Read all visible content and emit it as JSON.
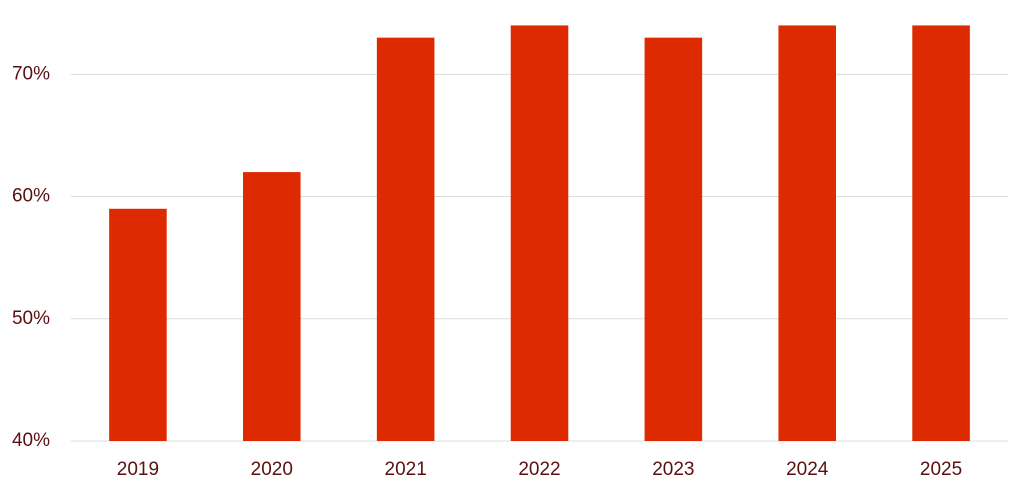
{
  "chart_data": {
    "type": "bar",
    "categories": [
      "2019",
      "2020",
      "2021",
      "2022",
      "2023",
      "2024",
      "2025"
    ],
    "values": [
      59,
      62,
      73,
      74,
      73,
      74,
      74
    ],
    "color": "#dd2a00",
    "ylim": [
      40,
      76
    ],
    "yticks": [
      {
        "value": 40,
        "label": "40%"
      },
      {
        "value": 50,
        "label": "50%"
      },
      {
        "value": 60,
        "label": "60%"
      },
      {
        "value": 70,
        "label": "70%"
      }
    ],
    "grid": true
  }
}
